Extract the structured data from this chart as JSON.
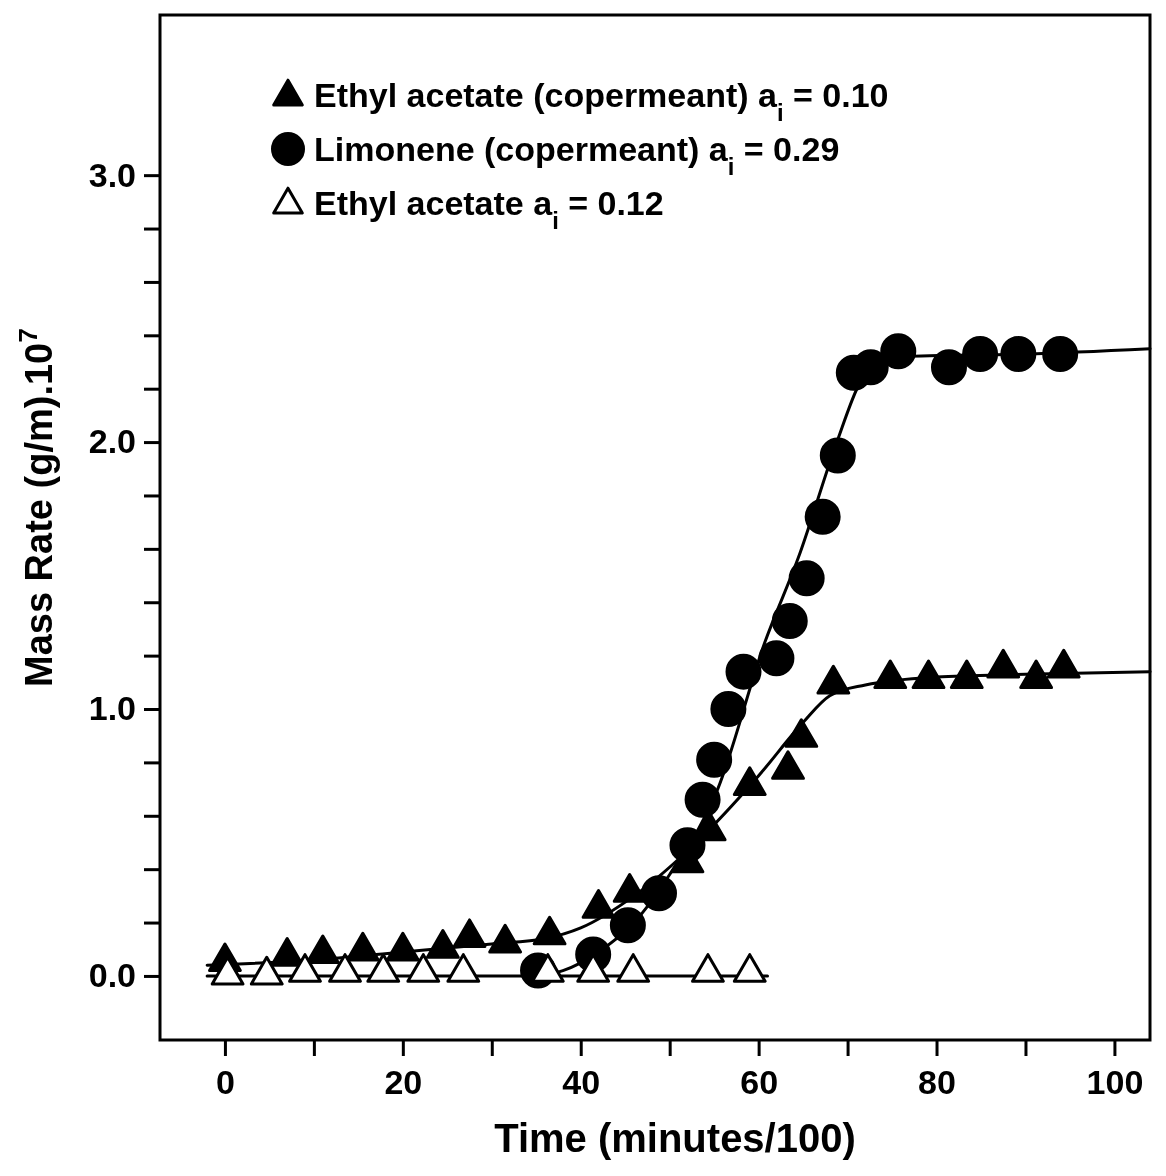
{
  "chart_data": {
    "type": "scatter",
    "xlabel": "Time (minutes/100)",
    "ylabel": "Mass Rate (g/m).10$^{7}$",
    "xlim": [
      -7.3,
      104
    ],
    "ylim": [
      -0.24,
      3.6
    ],
    "xticks": [
      0,
      {
        "value": 10,
        "label": null
      },
      20,
      {
        "value": 30,
        "label": null
      },
      40,
      {
        "value": 50,
        "label": null
      },
      60,
      {
        "value": 70,
        "label": null
      },
      80,
      {
        "value": 90,
        "label": null
      },
      100
    ],
    "yticks": [
      {
        "value": 0,
        "label": "0.0"
      },
      {
        "value": 0.2,
        "label": null
      },
      {
        "value": 0.4,
        "label": null
      },
      {
        "value": 0.6,
        "label": null
      },
      {
        "value": 0.8,
        "label": null
      },
      {
        "value": 1,
        "label": "1.0"
      },
      {
        "value": 1.2,
        "label": null
      },
      {
        "value": 1.4,
        "label": null
      },
      {
        "value": 1.6,
        "label": null
      },
      {
        "value": 1.8,
        "label": null
      },
      {
        "value": 2,
        "label": "2.0"
      },
      {
        "value": 2.2,
        "label": null
      },
      {
        "value": 2.4,
        "label": null
      },
      {
        "value": 2.6,
        "label": null
      },
      {
        "value": 2.8,
        "label": null
      },
      {
        "value": 3,
        "label": "3.0"
      }
    ],
    "grid": false,
    "legend": "top left",
    "series": [
      {
        "type": "line",
        "color": "#000000",
        "marker": "none",
        "x": [
          -2,
          10,
          20,
          30,
          36,
          40,
          46,
          53,
          60,
          65,
          68,
          72,
          80,
          90,
          104
        ],
        "values": [
          0.04,
          0.06,
          0.09,
          0.12,
          0.14,
          0.18,
          0.3,
          0.5,
          0.75,
          0.95,
          1.05,
          1.09,
          1.12,
          1.13,
          1.14
        ]
      },
      {
        "type": "line",
        "color": "#000000",
        "marker": "none",
        "x": [
          35,
          38,
          42,
          46,
          50,
          55.4,
          60.7,
          64.5,
          68.8,
          71.2,
          73,
          76,
          90,
          104
        ],
        "values": [
          0,
          0.02,
          0.09,
          0.2,
          0.38,
          0.7,
          1.25,
          1.57,
          2.0,
          2.21,
          2.3,
          2.32,
          2.33,
          2.35
        ]
      },
      {
        "type": "line",
        "color": "#000000",
        "marker": "none",
        "x": [
          -2,
          61
        ],
        "values": [
          0,
          0
        ]
      },
      {
        "name": "Ethyl acetate (copermeant) a$_{i}$ = 0.10",
        "color": "#000000",
        "marker": "triangle",
        "x": [
          0,
          7,
          11,
          15.5,
          20,
          24.5,
          27.5,
          31.5,
          36.5,
          42,
          45.5,
          52,
          54.5,
          59,
          63.3,
          64.8,
          68.4,
          74.8,
          79.1,
          83.4,
          87.5,
          91.2,
          94.3
        ],
        "values": [
          0.06,
          0.08,
          0.09,
          0.1,
          0.1,
          0.11,
          0.15,
          0.13,
          0.16,
          0.26,
          0.32,
          0.43,
          0.55,
          0.72,
          0.78,
          0.9,
          1.1,
          1.12,
          1.12,
          1.12,
          1.16,
          1.12,
          1.16
        ]
      },
      {
        "name": "Limonene (copermeant) a$_{i}$ = 0.29",
        "color": "#000000",
        "marker": "circle",
        "x": [
          35.2,
          41.4,
          45.3,
          48.8,
          52,
          53.7,
          55,
          56.6,
          58.3,
          62,
          63.5,
          65.4,
          67.2,
          68.9,
          70.7,
          72.6,
          75.7,
          81.4,
          84.9,
          89.2,
          93.9
        ],
        "values": [
          0.02,
          0.08,
          0.19,
          0.31,
          0.49,
          0.66,
          0.81,
          1.0,
          1.14,
          1.19,
          1.33,
          1.49,
          1.72,
          1.95,
          2.26,
          2.28,
          2.34,
          2.28,
          2.33,
          2.33,
          2.33
        ]
      },
      {
        "name": "Ethyl acetate a$_{i}$ = 0.12",
        "color": "#ffffff",
        "marker": "triangle",
        "x": [
          0.3,
          4.7,
          9,
          13.5,
          17.8,
          22.3,
          26.8,
          36.3,
          41.4,
          45.9,
          54.3,
          59
        ],
        "values": [
          0.01,
          0.01,
          0.02,
          0.02,
          0.02,
          0.02,
          0.02,
          0.02,
          0.02,
          0.02,
          0.02,
          0.02
        ]
      }
    ]
  }
}
